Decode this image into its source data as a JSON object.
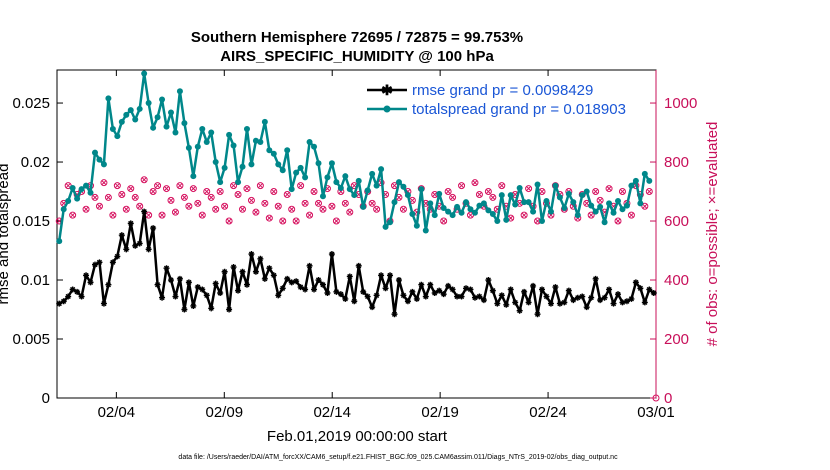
{
  "chart_data": {
    "type": "line",
    "title": "Southern Hemisphere 72695 / 72875 = 99.753%",
    "subtitle": "AIRS_SPECIFIC_HUMIDITY @ 100 hPa",
    "xlabel": "Feb.01,2019 00:00:00 start",
    "ylabel": "rmse and totalspread",
    "ylabel_right": "# of obs: o=possible; ×=evaluated",
    "footnote": "data file: /Users/raeder/DAI/ATM_forcXX/CAM6_setup/f.e21.FHIST_BGC.f09_025.CAM6assim.011/Diags_NTrS_2019-02/obs_diag_output.nc",
    "x_tick_labels": [
      "02/04",
      "02/09",
      "02/14",
      "02/19",
      "02/24",
      "03/01"
    ],
    "x_ticks": [
      4,
      9,
      14,
      19,
      24,
      29
    ],
    "xlim": [
      1.25,
      29.0
    ],
    "ylim": [
      0,
      0.0278
    ],
    "y_ticks": [
      0,
      0.005,
      0.01,
      0.015,
      0.02,
      0.025
    ],
    "y_tick_labels": [
      "0",
      "0.005",
      "0.01",
      "0.015",
      "0.02",
      "0.025"
    ],
    "ylim_right": [
      0,
      1112
    ],
    "y_ticks_right": [
      0,
      200,
      400,
      600,
      800,
      1000
    ],
    "y_tick_labels_right": [
      "0",
      "200",
      "400",
      "600",
      "800",
      "1000"
    ],
    "legend_position": "top-right",
    "series": [
      {
        "name": "rmse grand pr = 0.0098429",
        "color": "#000000",
        "marker": "asterisk",
        "values": [
          0.008,
          0.0082,
          0.0086,
          0.0092,
          0.009,
          0.0086,
          0.0104,
          0.0098,
          0.0113,
          0.0115,
          0.008,
          0.0096,
          0.0115,
          0.012,
          0.0138,
          0.0126,
          0.0148,
          0.0129,
          0.0131,
          0.0158,
          0.0126,
          0.0144,
          0.0096,
          0.0085,
          0.011,
          0.01,
          0.0086,
          0.0101,
          0.0075,
          0.0098,
          0.0078,
          0.0094,
          0.0092,
          0.0087,
          0.0076,
          0.0097,
          0.0089,
          0.0107,
          0.0075,
          0.0111,
          0.0091,
          0.0107,
          0.0096,
          0.0122,
          0.0107,
          0.0118,
          0.0101,
          0.011,
          0.0104,
          0.0087,
          0.0093,
          0.0101,
          0.0098,
          0.0099,
          0.0094,
          0.0092,
          0.0112,
          0.0092,
          0.01,
          0.0096,
          0.0089,
          0.0122,
          0.009,
          0.0088,
          0.0084,
          0.0103,
          0.0082,
          0.0112,
          0.009,
          0.0086,
          0.0077,
          0.0087,
          0.0104,
          0.0093,
          0.0104,
          0.0071,
          0.01,
          0.0087,
          0.0082,
          0.009,
          0.0084,
          0.0096,
          0.0086,
          0.0096,
          0.0089,
          0.0091,
          0.0088,
          0.0095,
          0.0092,
          0.0086,
          0.0086,
          0.0093,
          0.0092,
          0.0085,
          0.0086,
          0.0083,
          0.01,
          0.0091,
          0.008,
          0.0087,
          0.0079,
          0.0092,
          0.0081,
          0.0074,
          0.009,
          0.0081,
          0.0095,
          0.0071,
          0.0092,
          0.0086,
          0.008,
          0.0094,
          0.008,
          0.0081,
          0.0091,
          0.0083,
          0.0085,
          0.0086,
          0.0077,
          0.0085,
          0.0101,
          0.0083,
          0.0085,
          0.0092,
          0.008,
          0.0088,
          0.0081,
          0.0082,
          0.0084,
          0.0098,
          0.0093,
          0.0081,
          0.0092,
          0.0089
        ]
      },
      {
        "name": "totalspread grand pr = 0.018903",
        "color": "#00878a",
        "marker": "circle",
        "values": [
          0.0133,
          0.016,
          0.0167,
          0.0178,
          0.0169,
          0.0177,
          0.018,
          0.0174,
          0.0208,
          0.0202,
          0.0198,
          0.0254,
          0.0228,
          0.0222,
          0.0234,
          0.024,
          0.0244,
          0.0236,
          0.0245,
          0.0275,
          0.025,
          0.0229,
          0.0238,
          0.0253,
          0.023,
          0.0242,
          0.0225,
          0.026,
          0.0233,
          0.0212,
          0.0188,
          0.0213,
          0.0228,
          0.0217,
          0.0225,
          0.02,
          0.0183,
          0.0195,
          0.0223,
          0.0214,
          0.0183,
          0.0196,
          0.0228,
          0.0198,
          0.0218,
          0.0217,
          0.0234,
          0.021,
          0.0207,
          0.0198,
          0.0193,
          0.021,
          0.0177,
          0.0191,
          0.0195,
          0.0187,
          0.0217,
          0.0213,
          0.0199,
          0.0171,
          0.0187,
          0.0199,
          0.0183,
          0.0178,
          0.0188,
          0.0177,
          0.0172,
          0.0184,
          0.0162,
          0.0176,
          0.019,
          0.018,
          0.0194,
          0.0145,
          0.0149,
          0.0166,
          0.0183,
          0.0179,
          0.0172,
          0.0156,
          0.0146,
          0.0177,
          0.0142,
          0.0165,
          0.0155,
          0.0173,
          0.0161,
          0.0158,
          0.0155,
          0.0162,
          0.0157,
          0.0166,
          0.016,
          0.0157,
          0.0163,
          0.0165,
          0.0159,
          0.0156,
          0.015,
          0.0172,
          0.0151,
          0.0172,
          0.0164,
          0.0178,
          0.0166,
          0.0166,
          0.0158,
          0.0181,
          0.015,
          0.0167,
          0.0158,
          0.018,
          0.017,
          0.0161,
          0.0173,
          0.0166,
          0.0155,
          0.0172,
          0.0175,
          0.0163,
          0.0158,
          0.0162,
          0.0149,
          0.0165,
          0.0157,
          0.0167,
          0.016,
          0.0163,
          0.018,
          0.0184,
          0.0165,
          0.019,
          0.0184
        ]
      },
      {
        "name": "# obs possible",
        "axis": "right",
        "color": "#d6115f",
        "marker": "o",
        "values": [
          600,
          660,
          720,
          620,
          690,
          700,
          640,
          720,
          680,
          650,
          730,
          680,
          620,
          720,
          690,
          640,
          710,
          680,
          650,
          740,
          620,
          700,
          720,
          620,
          710,
          670,
          630,
          720,
          680,
          650,
          710,
          660,
          620,
          700,
          680,
          640,
          700,
          650,
          600,
          720,
          690,
          640,
          710,
          670,
          630,
          720,
          660,
          610,
          700,
          650,
          600,
          690,
          640,
          600,
          720,
          660,
          620,
          700,
          660,
          640,
          710,
          650,
          600,
          700,
          660,
          630,
          720,
          690,
          650,
          700,
          660,
          640,
          730,
          690,
          600,
          720,
          680,
          640,
          700,
          670,
          630,
          710,
          660,
          640,
          690,
          650,
          600,
          700,
          680,
          640,
          720,
          660,
          620,
          730,
          690,
          650,
          700,
          680,
          640,
          720,
          650,
          610,
          690,
          660,
          620,
          710,
          650,
          600,
          700,
          660,
          620,
          720,
          690,
          640,
          700,
          650,
          610,
          690,
          660,
          620,
          700,
          670,
          630,
          710,
          650,
          600,
          700,
          660,
          620,
          720,
          690,
          650,
          700
        ]
      },
      {
        "name": "# obs evaluated",
        "axis": "right",
        "color": "#d6115f",
        "marker": "x",
        "values": [
          600,
          660,
          720,
          620,
          690,
          700,
          640,
          720,
          680,
          650,
          730,
          680,
          620,
          720,
          690,
          640,
          710,
          680,
          650,
          740,
          620,
          700,
          720,
          620,
          710,
          670,
          630,
          720,
          680,
          650,
          710,
          660,
          620,
          700,
          680,
          640,
          700,
          650,
          600,
          720,
          690,
          640,
          710,
          670,
          630,
          720,
          660,
          610,
          700,
          650,
          600,
          690,
          640,
          600,
          720,
          660,
          620,
          700,
          660,
          640,
          710,
          650,
          600,
          700,
          660,
          630,
          720,
          690,
          650,
          700,
          660,
          640,
          730,
          690,
          600,
          720,
          680,
          640,
          700,
          670,
          630,
          710,
          660,
          640,
          690,
          650,
          600,
          700,
          680,
          640,
          720,
          660,
          620,
          730,
          690,
          650,
          700,
          680,
          640,
          720,
          650,
          610,
          690,
          660,
          620,
          710,
          650,
          600,
          700,
          660,
          620,
          720,
          690,
          640,
          700,
          650,
          610,
          690,
          660,
          620,
          700,
          670,
          630,
          710,
          650,
          600,
          700,
          660,
          620,
          720,
          690,
          650,
          700
        ]
      }
    ]
  }
}
